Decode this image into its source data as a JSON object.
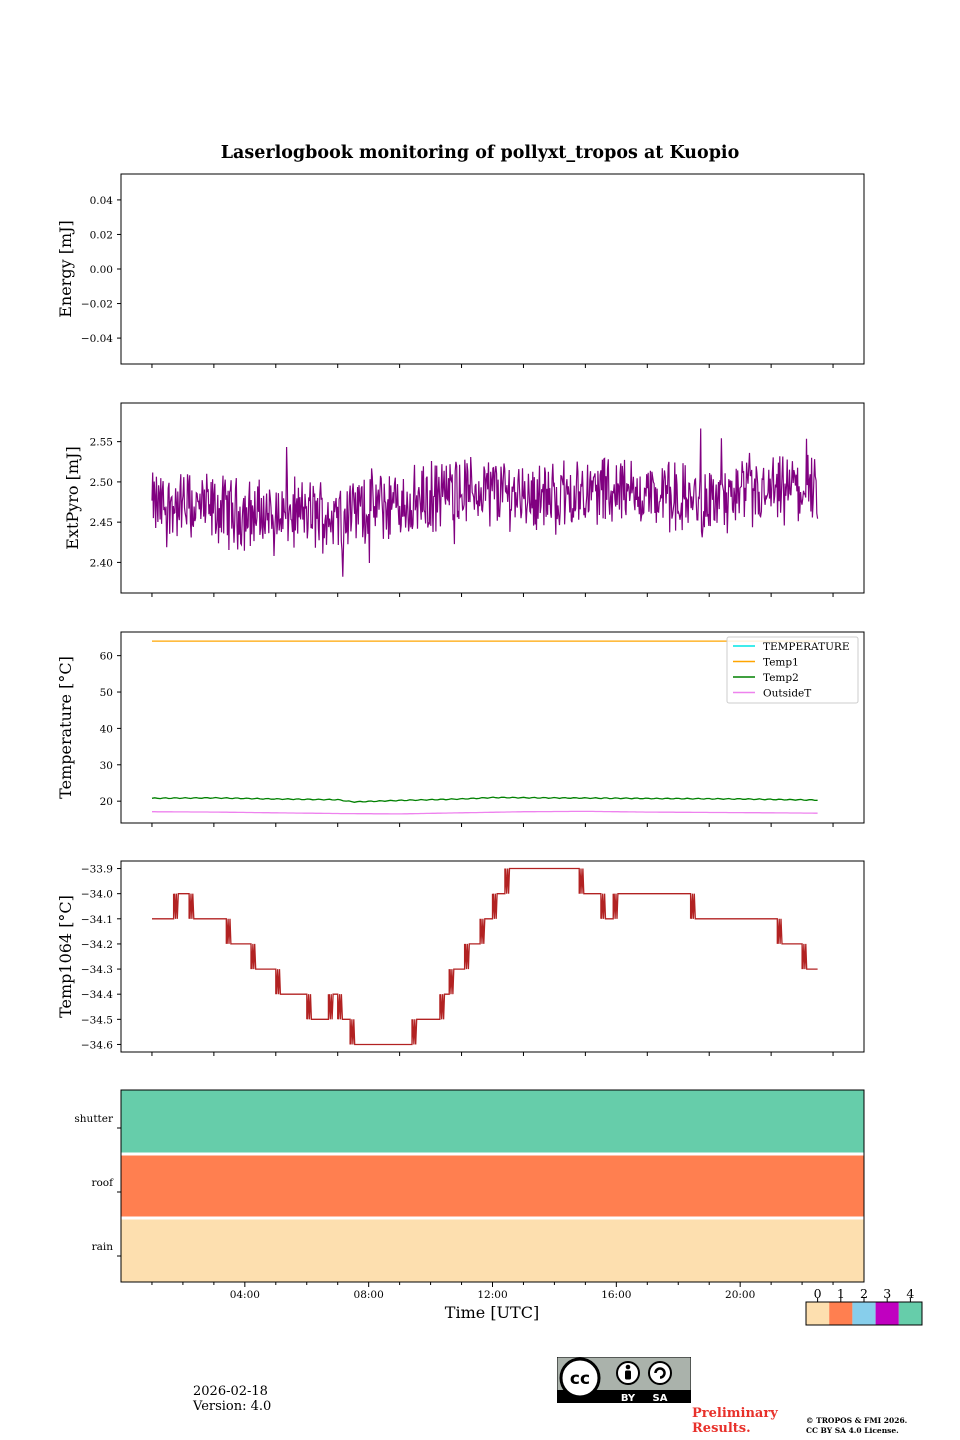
{
  "title": "Laserlogbook monitoring of pollyxt_tropos at Kuopio",
  "xlabel": "Time [UTC]",
  "date": "2026-02-18",
  "version": "Version: 4.0",
  "preliminary": "Preliminary Results.",
  "copyright_line1": "© TROPOS & FMI 2026.",
  "copyright_line2": "CC BY SA 4.0 License.",
  "cc_badge": {
    "by": "BY",
    "sa": "SA",
    "cc": "cc"
  },
  "colors": {
    "extpyro": "#800080",
    "temperature": "#00e5e5",
    "temp1": "#ffa500",
    "temp2": "#008000",
    "outsideT": "#ee82ee",
    "temp1064": "#b22222",
    "status0": "#fddfaf",
    "status1": "#ff7f50",
    "status2": "#87ceeb",
    "status3": "#c000c0",
    "status4": "#66cdaa"
  },
  "chart_data": [
    {
      "type": "line",
      "name": "energy",
      "ylabel": "Energy [mJ]",
      "ylim": [
        -0.055,
        0.055
      ],
      "yticks": [
        "0.04",
        "0.02",
        "0.00",
        "−0.02",
        "−0.04"
      ],
      "ytick_values": [
        0.04,
        0.02,
        0.0,
        -0.02,
        -0.04
      ],
      "series": []
    },
    {
      "type": "line",
      "name": "extpyro",
      "ylabel": "ExtPyro [mJ]",
      "ylim": [
        2.362,
        2.598
      ],
      "yticks": [
        "2.55",
        "2.50",
        "2.45",
        "2.40"
      ],
      "ytick_values": [
        2.55,
        2.5,
        2.45,
        2.4
      ],
      "x_range_hours": [
        1.0,
        22.5
      ],
      "series": [
        {
          "name": "ExtPyro",
          "summary_x_hours": [
            1,
            2,
            3,
            4,
            5,
            6,
            7,
            8,
            9,
            10,
            11,
            12,
            13,
            14,
            15,
            16,
            17,
            18,
            19,
            20,
            21,
            22,
            22.5
          ],
          "summary_mean": [
            2.47,
            2.47,
            2.465,
            2.46,
            2.46,
            2.46,
            2.46,
            2.47,
            2.47,
            2.48,
            2.49,
            2.49,
            2.485,
            2.48,
            2.49,
            2.49,
            2.485,
            2.48,
            2.475,
            2.48,
            2.485,
            2.49,
            2.5
          ],
          "min": 2.372,
          "max": 2.586
        }
      ]
    },
    {
      "type": "line",
      "name": "temperature",
      "ylabel": "Temperature [°C]",
      "ylim": [
        14,
        66.5
      ],
      "yticks": [
        "60",
        "50",
        "40",
        "30",
        "20"
      ],
      "ytick_values": [
        60,
        50,
        40,
        30,
        20
      ],
      "legend_placement": "top-right",
      "series": [
        {
          "name": "TEMPERATURE",
          "x_hours": [],
          "values": []
        },
        {
          "name": "Temp1",
          "x_hours": [
            1,
            22.5
          ],
          "values": [
            64,
            64
          ]
        },
        {
          "name": "Temp2",
          "x_hours": [
            1,
            3,
            5,
            7,
            7.5,
            9,
            11,
            12,
            14,
            16,
            18,
            20,
            22.5
          ],
          "values": [
            20.8,
            20.9,
            20.6,
            20.4,
            19.8,
            20.2,
            20.6,
            21.0,
            20.9,
            20.8,
            20.7,
            20.6,
            20.3
          ]
        },
        {
          "name": "OutsideT",
          "x_hours": [
            1,
            3,
            5,
            7,
            9,
            11,
            13,
            15,
            17,
            19,
            21,
            22.5
          ],
          "values": [
            17.1,
            17.0,
            16.8,
            16.6,
            16.5,
            16.8,
            17.1,
            17.2,
            17.0,
            16.9,
            16.8,
            16.7
          ]
        }
      ]
    },
    {
      "type": "line",
      "name": "temp1064",
      "ylabel": "Temp1064 [°C]",
      "ylim": [
        -34.63,
        -33.87
      ],
      "yticks": [
        "−33.9",
        "−34.0",
        "−34.1",
        "−34.2",
        "−34.3",
        "−34.4",
        "−34.5",
        "−34.6"
      ],
      "ytick_values": [
        -33.9,
        -34.0,
        -34.1,
        -34.2,
        -34.3,
        -34.4,
        -34.5,
        -34.6
      ],
      "series": [
        {
          "name": "Temp1064",
          "steps_start_end_value": [
            [
              1.0,
              1.7,
              -34.1
            ],
            [
              1.7,
              2.2,
              -34.0
            ],
            [
              2.2,
              3.4,
              -34.1
            ],
            [
              3.4,
              4.2,
              -34.2
            ],
            [
              4.2,
              5.0,
              -34.3
            ],
            [
              5.0,
              6.0,
              -34.4
            ],
            [
              6.0,
              6.7,
              -34.5
            ],
            [
              6.7,
              7.0,
              -34.4
            ],
            [
              7.0,
              7.4,
              -34.5
            ],
            [
              7.4,
              9.4,
              -34.6
            ],
            [
              9.4,
              10.3,
              -34.5
            ],
            [
              10.3,
              10.6,
              -34.4
            ],
            [
              10.6,
              11.1,
              -34.3
            ],
            [
              11.1,
              11.6,
              -34.2
            ],
            [
              11.6,
              12.0,
              -34.1
            ],
            [
              12.0,
              12.4,
              -34.0
            ],
            [
              12.4,
              13.0,
              -33.9
            ],
            [
              13.0,
              13.2,
              -33.9
            ],
            [
              13.2,
              14.8,
              -33.9
            ],
            [
              14.8,
              15.5,
              -34.0
            ],
            [
              15.5,
              15.9,
              -34.1
            ],
            [
              15.9,
              16.7,
              -34.0
            ],
            [
              16.7,
              17.5,
              -34.0
            ],
            [
              17.5,
              18.4,
              -34.0
            ],
            [
              18.4,
              20.3,
              -34.1
            ],
            [
              20.3,
              21.2,
              -34.1
            ],
            [
              21.2,
              22.0,
              -34.2
            ],
            [
              22.0,
              22.5,
              -34.3
            ]
          ],
          "min": -34.6,
          "max": -33.9
        }
      ]
    },
    {
      "type": "heatmap",
      "name": "status",
      "rows": [
        "shutter",
        "roof",
        "rain"
      ],
      "row_status_values": [
        4,
        1,
        0
      ],
      "xlim_hours": [
        0,
        24
      ],
      "xticks": [
        "04:00",
        "08:00",
        "12:00",
        "16:00",
        "20:00"
      ],
      "xtick_hours": [
        4,
        8,
        12,
        16,
        20
      ],
      "colorbar_ticks": [
        "0",
        "1",
        "2",
        "3",
        "4"
      ]
    }
  ]
}
